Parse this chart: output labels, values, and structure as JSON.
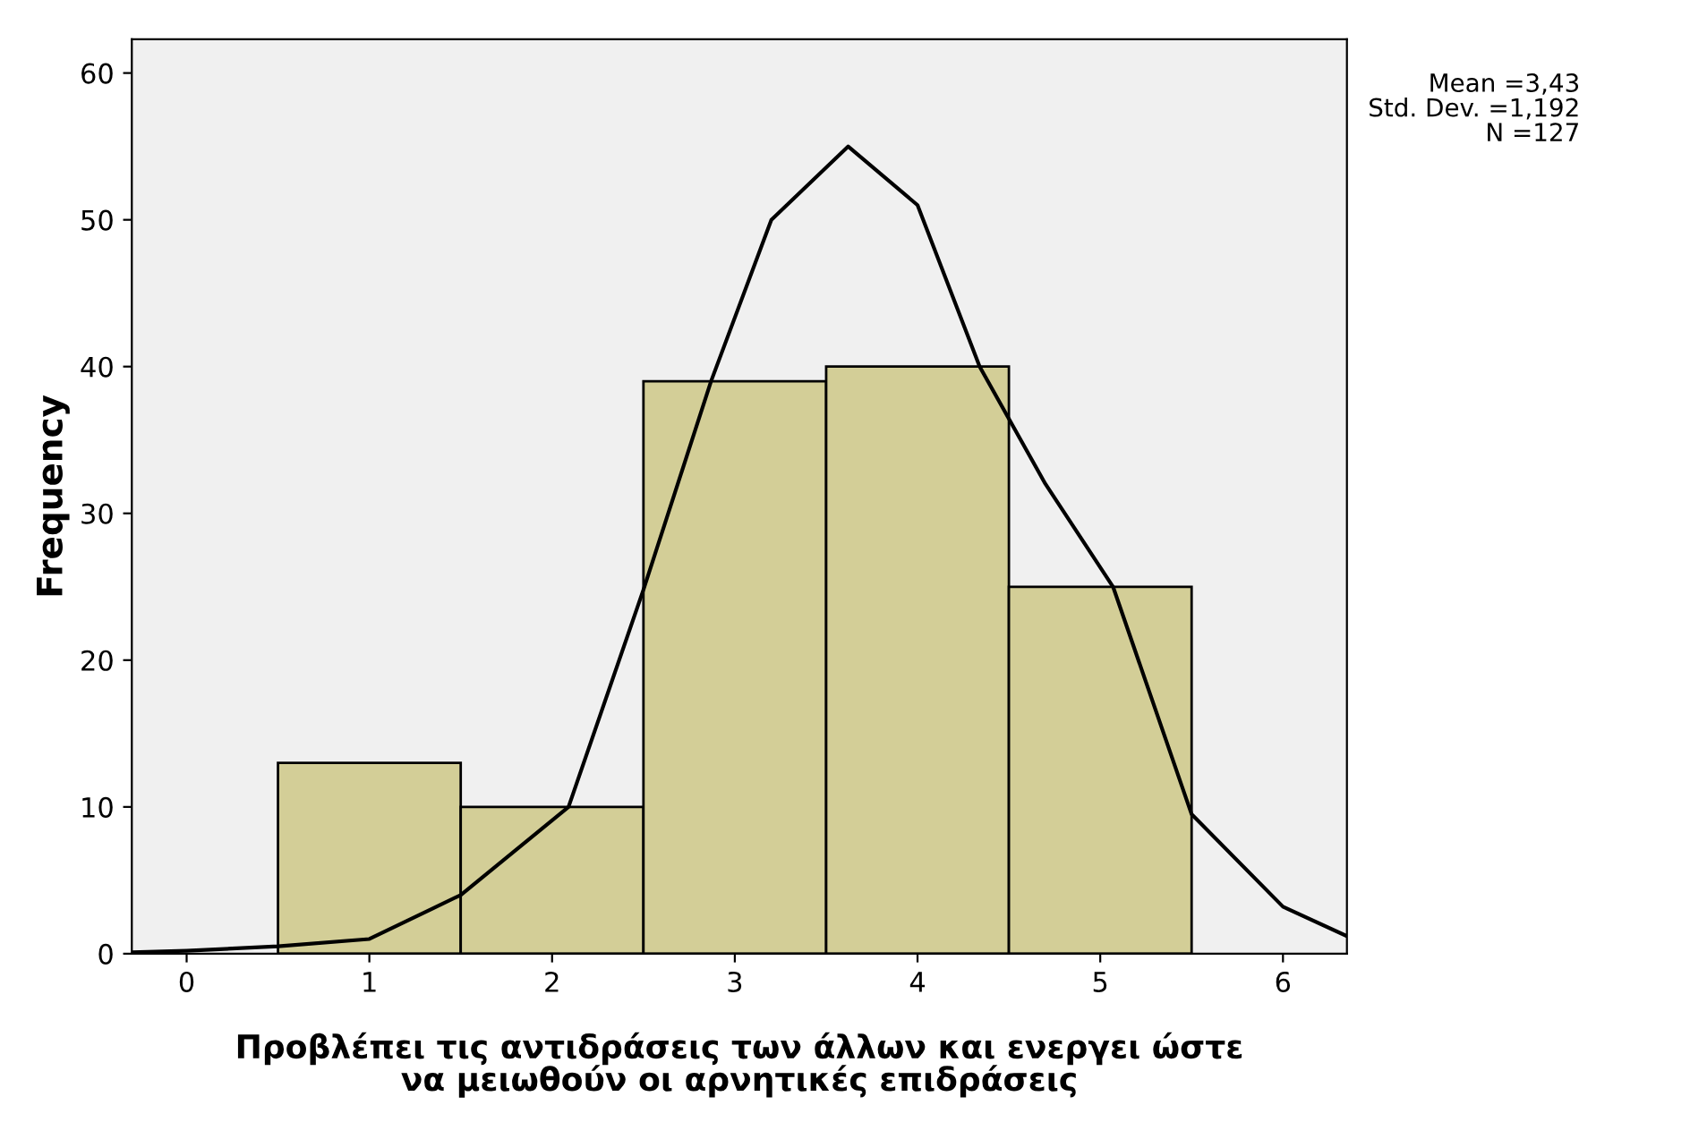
{
  "chart_data": {
    "type": "histogram",
    "ylabel": "Frequency",
    "xlabel": "Προβλέπει τις αντιδράσεις των άλλων και ενεργει ώστε\nνα μειωθούν οι αρνητικές επιδράσεις",
    "bins": [
      0.5,
      1.5,
      2.5,
      3.5,
      4.5,
      5.5
    ],
    "series": [
      {
        "color": "#d3ce97",
        "values": [
          13,
          10,
          39,
          40,
          25
        ]
      },
      {
        "type": "line",
        "color": "#000000",
        "x": [
          -0.3,
          0,
          0.5,
          1,
          1.5,
          2.09,
          2.5,
          2.87,
          3.2,
          3.62,
          4.0,
          4.34,
          4.7,
          5.07,
          5.5,
          6,
          6.35
        ],
        "values": [
          0.1,
          0.2,
          0.5,
          1,
          4,
          10,
          24.8,
          39,
          50,
          55,
          51,
          40,
          32,
          25,
          9.5,
          3.2,
          1.2
        ]
      }
    ],
    "xlim": [
      -0.3,
      6.35
    ],
    "ylim": [
      0,
      62.3
    ],
    "xticks": [
      0,
      1,
      2,
      3,
      4,
      5,
      6
    ],
    "yticks": [
      0,
      10,
      20,
      30,
      40,
      50,
      60
    ],
    "annotations": [
      "Mean =3,43",
      "Std. Dev. =1,192",
      "N =127"
    ]
  }
}
